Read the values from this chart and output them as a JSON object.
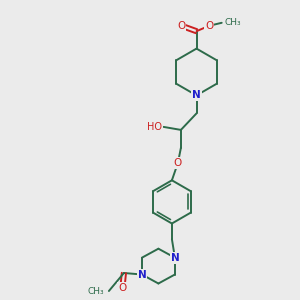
{
  "background_color": "#ebebeb",
  "bond_color": "#2d6b4a",
  "N_color": "#2020cc",
  "O_color": "#cc2020",
  "figsize": [
    3.0,
    3.0
  ],
  "dpi": 100,
  "xlim": [
    0,
    10
  ],
  "ylim": [
    0,
    10
  ]
}
